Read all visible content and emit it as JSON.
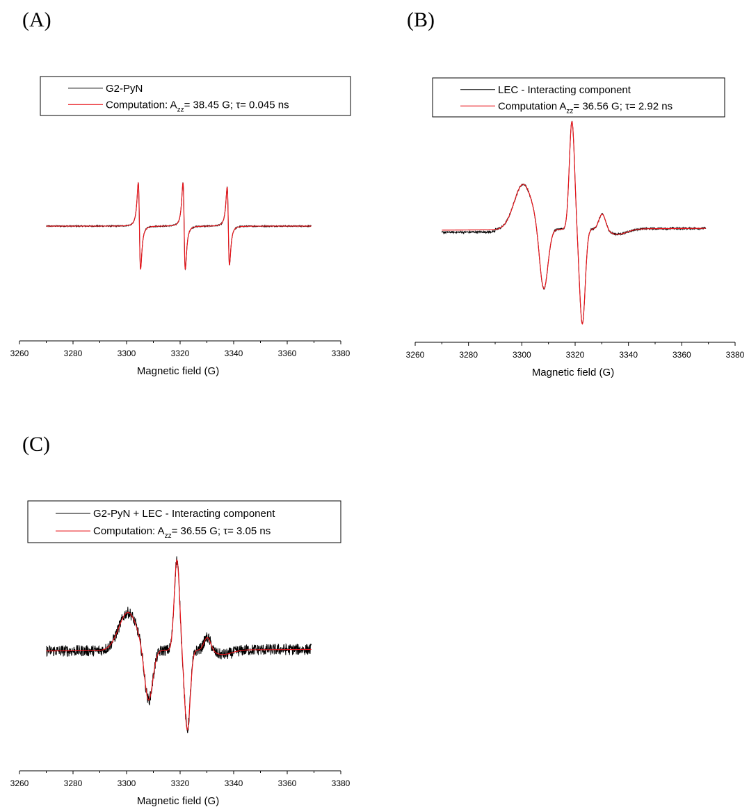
{
  "figure": {
    "panels": [
      {
        "panel_label": "(A)",
        "chart_data": {
          "type": "line",
          "xlabel": "Magnetic field (G)",
          "ylabel": "",
          "xlim": [
            3260,
            3380
          ],
          "xticks": [
            3260,
            3280,
            3300,
            3320,
            3340,
            3360,
            3380
          ],
          "y_axis_shown": false,
          "grid": false,
          "legend_position": "top",
          "series": [
            {
              "name": "G2-PyN",
              "color": "#000000"
            },
            {
              "name_parts": [
                "Computation: A",
                "zz",
                "= 38.45 G; τ= 0.045 ns"
              ],
              "color": "#e8141a"
            }
          ],
          "line_shape": {
            "kind": "triplet_narrow",
            "x_range": [
              3270,
              3369
            ],
            "peaks": [
              3304.8,
              3321.5,
              3338.0
            ],
            "noise": "low"
          }
        }
      },
      {
        "panel_label": "(B)",
        "chart_data": {
          "type": "line",
          "xlabel": "Magnetic field (G)",
          "ylabel": "",
          "xlim": [
            3260,
            3380
          ],
          "xticks": [
            3260,
            3280,
            3300,
            3320,
            3340,
            3360,
            3380
          ],
          "y_axis_shown": false,
          "grid": false,
          "legend_position": "top",
          "series": [
            {
              "name": "LEC - Interacting component",
              "color": "#000000"
            },
            {
              "name_parts": [
                "Computation A",
                "zz",
                "= 36.56 G; τ= 2.92 ns"
              ],
              "color": "#e8141a"
            }
          ],
          "line_shape": {
            "kind": "slow_motion",
            "x_range": [
              3270,
              3369
            ],
            "features": [
              3300,
              3308,
              3319,
              3322.5,
              3330
            ],
            "noise": "low"
          }
        }
      },
      {
        "panel_label": "(C)",
        "chart_data": {
          "type": "line",
          "xlabel": "Magnetic field (G)",
          "ylabel": "",
          "xlim": [
            3260,
            3380
          ],
          "xticks": [
            3260,
            3280,
            3300,
            3320,
            3340,
            3360,
            3380
          ],
          "y_axis_shown": false,
          "grid": false,
          "legend_position": "top",
          "series": [
            {
              "name": "G2-PyN + LEC - Interacting component",
              "color": "#000000"
            },
            {
              "name_parts": [
                "Computation: A",
                "zz",
                "= 36.55 G; τ= 3.05 ns"
              ],
              "color": "#e8141a"
            }
          ],
          "line_shape": {
            "kind": "slow_motion",
            "x_range": [
              3270,
              3369
            ],
            "features": [
              3300,
              3308,
              3319,
              3322.5,
              3330
            ],
            "noise": "high"
          }
        }
      }
    ]
  }
}
